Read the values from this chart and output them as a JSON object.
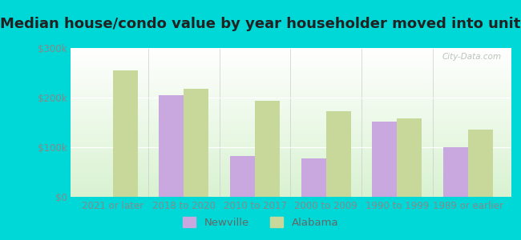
{
  "title": "Median house/condo value by year householder moved into unit",
  "categories": [
    "2021 or later",
    "2018 to 2020",
    "2010 to 2017",
    "2000 to 2009",
    "1990 to 1999",
    "1989 or earlier"
  ],
  "newville_values": [
    null,
    205000,
    82000,
    78000,
    152000,
    100000
  ],
  "alabama_values": [
    255000,
    218000,
    193000,
    172000,
    158000,
    135000
  ],
  "newville_color": "#c9a8e0",
  "alabama_color": "#c8d89a",
  "background_outer": "#00d8d8",
  "ylim": [
    0,
    300000
  ],
  "yticks": [
    0,
    100000,
    200000,
    300000
  ],
  "ytick_labels": [
    "$0",
    "$100k",
    "$200k",
    "$300k"
  ],
  "bar_width": 0.35,
  "legend_labels": [
    "Newville",
    "Alabama"
  ],
  "watermark": "City-Data.com",
  "title_fontsize": 13,
  "tick_fontsize": 8.5,
  "legend_fontsize": 9.5
}
